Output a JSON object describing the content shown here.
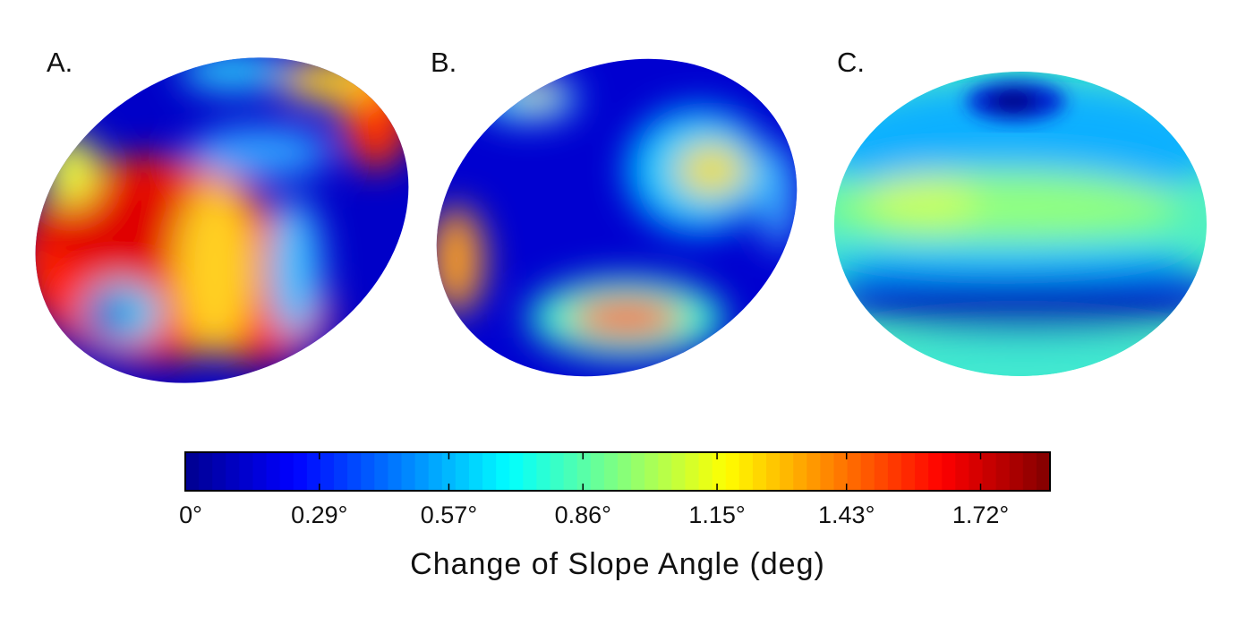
{
  "chart_data": {
    "type": "heatmap",
    "title": "",
    "panels": [
      {
        "label": "A."
      },
      {
        "label": "B."
      },
      {
        "label": "C."
      }
    ],
    "colorbar": {
      "title": "Change of Slope Angle (deg)",
      "colormap": "jet",
      "range": [
        0,
        1.87
      ],
      "ticks": [
        0,
        0.29,
        0.57,
        0.86,
        1.15,
        1.43,
        1.72
      ],
      "tick_labels": [
        "0°",
        "0.29°",
        "0.57°",
        "0.86°",
        "1.15°",
        "1.43°",
        "1.72°"
      ]
    },
    "colors": {
      "jet_stops": [
        "#00008f",
        "#0000ff",
        "#0080ff",
        "#00ffff",
        "#80ff80",
        "#ffff00",
        "#ff8000",
        "#ff0000",
        "#800000"
      ]
    }
  }
}
